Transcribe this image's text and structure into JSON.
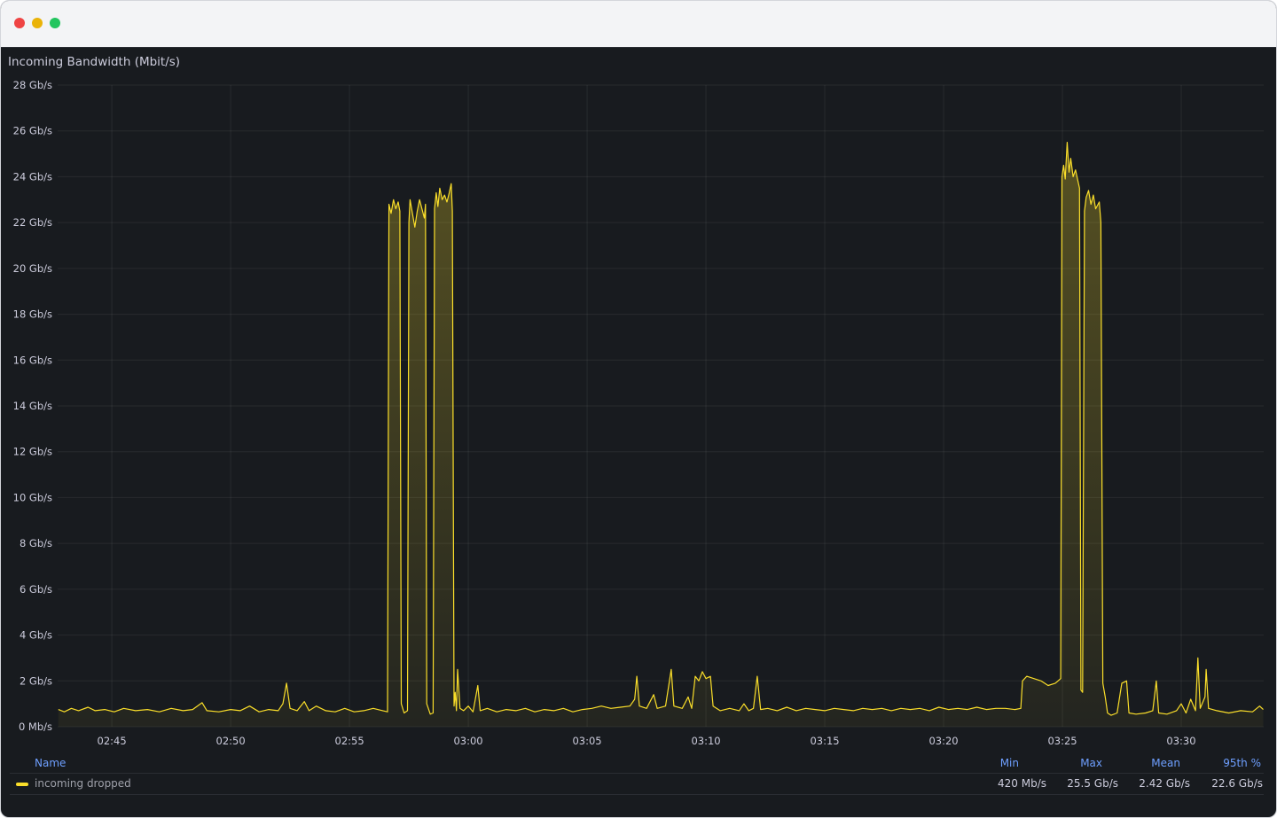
{
  "window": {
    "controls": [
      "close",
      "minimize",
      "maximize"
    ]
  },
  "panel": {
    "title": "Incoming Bandwidth (Mbit/s)"
  },
  "colors": {
    "series": "#fade2a",
    "background": "#181b1f",
    "legend_header": "#6e9fff"
  },
  "chart_data": {
    "type": "area",
    "title": "Incoming Bandwidth (Mbit/s)",
    "xlabel": "",
    "ylabel": "",
    "x_unit": "minutes after 02:40",
    "xlim": [
      2.72,
      53.47
    ],
    "ylim": [
      0,
      28
    ],
    "y_ticks": [
      0,
      2,
      4,
      6,
      8,
      10,
      12,
      14,
      16,
      18,
      20,
      22,
      24,
      26,
      28
    ],
    "y_tick_labels": [
      "0 Mb/s",
      "2 Gb/s",
      "4 Gb/s",
      "6 Gb/s",
      "8 Gb/s",
      "10 Gb/s",
      "12 Gb/s",
      "14 Gb/s",
      "16 Gb/s",
      "18 Gb/s",
      "20 Gb/s",
      "22 Gb/s",
      "24 Gb/s",
      "26 Gb/s",
      "28 Gb/s"
    ],
    "x_ticks": [
      5,
      10,
      15,
      20,
      25,
      30,
      35,
      40,
      45,
      50
    ],
    "x_tick_labels": [
      "02:45",
      "02:50",
      "02:55",
      "03:00",
      "03:05",
      "03:10",
      "03:15",
      "03:20",
      "03:25",
      "03:30"
    ],
    "grid": true,
    "legend_placement": "bottom",
    "series": [
      {
        "name": "incoming dropped",
        "points": [
          [
            2.75,
            0.75
          ],
          [
            3.0,
            0.65
          ],
          [
            3.3,
            0.8
          ],
          [
            3.6,
            0.7
          ],
          [
            4.0,
            0.85
          ],
          [
            4.3,
            0.7
          ],
          [
            4.7,
            0.75
          ],
          [
            5.1,
            0.65
          ],
          [
            5.5,
            0.8
          ],
          [
            6.0,
            0.7
          ],
          [
            6.5,
            0.75
          ],
          [
            7.0,
            0.65
          ],
          [
            7.5,
            0.8
          ],
          [
            8.0,
            0.7
          ],
          [
            8.4,
            0.75
          ],
          [
            8.8,
            1.05
          ],
          [
            9.0,
            0.7
          ],
          [
            9.5,
            0.65
          ],
          [
            10.0,
            0.75
          ],
          [
            10.4,
            0.7
          ],
          [
            10.8,
            0.9
          ],
          [
            11.2,
            0.65
          ],
          [
            11.6,
            0.75
          ],
          [
            12.0,
            0.7
          ],
          [
            12.2,
            1.0
          ],
          [
            12.35,
            1.9
          ],
          [
            12.5,
            0.8
          ],
          [
            12.8,
            0.7
          ],
          [
            13.1,
            1.1
          ],
          [
            13.3,
            0.7
          ],
          [
            13.6,
            0.9
          ],
          [
            14.0,
            0.7
          ],
          [
            14.4,
            0.65
          ],
          [
            14.8,
            0.8
          ],
          [
            15.2,
            0.65
          ],
          [
            15.6,
            0.7
          ],
          [
            16.0,
            0.8
          ],
          [
            16.4,
            0.7
          ],
          [
            16.6,
            0.65
          ],
          [
            16.66,
            22.8
          ],
          [
            16.75,
            22.4
          ],
          [
            16.85,
            23.0
          ],
          [
            16.95,
            22.6
          ],
          [
            17.05,
            22.9
          ],
          [
            17.12,
            22.5
          ],
          [
            17.18,
            1.0
          ],
          [
            17.3,
            0.6
          ],
          [
            17.44,
            0.7
          ],
          [
            17.5,
            22.0
          ],
          [
            17.55,
            23.0
          ],
          [
            17.65,
            22.4
          ],
          [
            17.75,
            21.8
          ],
          [
            17.85,
            22.5
          ],
          [
            17.95,
            23.0
          ],
          [
            18.05,
            22.6
          ],
          [
            18.15,
            22.2
          ],
          [
            18.2,
            22.8
          ],
          [
            18.25,
            1.0
          ],
          [
            18.4,
            0.55
          ],
          [
            18.52,
            0.6
          ],
          [
            18.58,
            22.6
          ],
          [
            18.65,
            23.3
          ],
          [
            18.72,
            22.7
          ],
          [
            18.8,
            23.5
          ],
          [
            18.9,
            23.0
          ],
          [
            19.0,
            23.2
          ],
          [
            19.1,
            22.9
          ],
          [
            19.2,
            23.3
          ],
          [
            19.28,
            23.7
          ],
          [
            19.33,
            22.5
          ],
          [
            19.4,
            0.9
          ],
          [
            19.45,
            1.5
          ],
          [
            19.5,
            0.7
          ],
          [
            19.55,
            2.5
          ],
          [
            19.65,
            0.8
          ],
          [
            19.8,
            0.7
          ],
          [
            20.0,
            0.9
          ],
          [
            20.2,
            0.65
          ],
          [
            20.4,
            1.8
          ],
          [
            20.5,
            0.7
          ],
          [
            20.8,
            0.8
          ],
          [
            21.2,
            0.65
          ],
          [
            21.6,
            0.75
          ],
          [
            22.0,
            0.7
          ],
          [
            22.4,
            0.8
          ],
          [
            22.8,
            0.65
          ],
          [
            23.2,
            0.75
          ],
          [
            23.6,
            0.7
          ],
          [
            24.0,
            0.8
          ],
          [
            24.4,
            0.65
          ],
          [
            24.8,
            0.75
          ],
          [
            25.2,
            0.8
          ],
          [
            25.6,
            0.9
          ],
          [
            26.0,
            0.8
          ],
          [
            26.4,
            0.85
          ],
          [
            26.8,
            0.9
          ],
          [
            27.0,
            1.2
          ],
          [
            27.09,
            2.2
          ],
          [
            27.2,
            0.9
          ],
          [
            27.5,
            0.8
          ],
          [
            27.8,
            1.4
          ],
          [
            27.95,
            0.8
          ],
          [
            28.3,
            0.9
          ],
          [
            28.54,
            2.5
          ],
          [
            28.65,
            0.9
          ],
          [
            29.0,
            0.8
          ],
          [
            29.25,
            1.3
          ],
          [
            29.4,
            0.8
          ],
          [
            29.55,
            2.2
          ],
          [
            29.7,
            2.0
          ],
          [
            29.85,
            2.4
          ],
          [
            30.0,
            2.1
          ],
          [
            30.19,
            2.2
          ],
          [
            30.3,
            0.9
          ],
          [
            30.6,
            0.7
          ],
          [
            31.0,
            0.8
          ],
          [
            31.4,
            0.7
          ],
          [
            31.6,
            1.0
          ],
          [
            31.8,
            0.7
          ],
          [
            32.0,
            0.8
          ],
          [
            32.16,
            2.2
          ],
          [
            32.3,
            0.75
          ],
          [
            32.6,
            0.8
          ],
          [
            33.0,
            0.7
          ],
          [
            33.4,
            0.85
          ],
          [
            33.8,
            0.7
          ],
          [
            34.2,
            0.8
          ],
          [
            34.6,
            0.75
          ],
          [
            35.0,
            0.7
          ],
          [
            35.4,
            0.8
          ],
          [
            35.8,
            0.75
          ],
          [
            36.2,
            0.7
          ],
          [
            36.6,
            0.8
          ],
          [
            37.0,
            0.75
          ],
          [
            37.4,
            0.8
          ],
          [
            37.8,
            0.7
          ],
          [
            38.2,
            0.8
          ],
          [
            38.6,
            0.75
          ],
          [
            39.0,
            0.8
          ],
          [
            39.4,
            0.7
          ],
          [
            39.8,
            0.85
          ],
          [
            40.2,
            0.75
          ],
          [
            40.6,
            0.8
          ],
          [
            41.0,
            0.75
          ],
          [
            41.4,
            0.85
          ],
          [
            41.8,
            0.75
          ],
          [
            42.2,
            0.8
          ],
          [
            42.6,
            0.8
          ],
          [
            43.0,
            0.75
          ],
          [
            43.25,
            0.8
          ],
          [
            43.32,
            2.0
          ],
          [
            43.5,
            2.2
          ],
          [
            43.8,
            2.1
          ],
          [
            44.1,
            2.0
          ],
          [
            44.4,
            1.8
          ],
          [
            44.7,
            1.9
          ],
          [
            44.93,
            2.1
          ],
          [
            44.98,
            24.0
          ],
          [
            45.05,
            24.5
          ],
          [
            45.12,
            23.9
          ],
          [
            45.2,
            25.5
          ],
          [
            45.28,
            24.2
          ],
          [
            45.35,
            24.8
          ],
          [
            45.45,
            24.0
          ],
          [
            45.55,
            24.3
          ],
          [
            45.72,
            23.5
          ],
          [
            45.78,
            1.6
          ],
          [
            45.85,
            1.5
          ],
          [
            45.93,
            22.5
          ],
          [
            46.0,
            23.1
          ],
          [
            46.1,
            23.4
          ],
          [
            46.2,
            22.8
          ],
          [
            46.3,
            23.2
          ],
          [
            46.4,
            22.6
          ],
          [
            46.55,
            22.9
          ],
          [
            46.62,
            22.0
          ],
          [
            46.7,
            1.9
          ],
          [
            46.8,
            1.3
          ],
          [
            46.9,
            0.6
          ],
          [
            47.05,
            0.5
          ],
          [
            47.3,
            0.6
          ],
          [
            47.5,
            1.9
          ],
          [
            47.7,
            2.0
          ],
          [
            47.8,
            0.6
          ],
          [
            48.1,
            0.55
          ],
          [
            48.5,
            0.6
          ],
          [
            48.8,
            0.7
          ],
          [
            48.95,
            2.0
          ],
          [
            49.05,
            0.6
          ],
          [
            49.4,
            0.55
          ],
          [
            49.8,
            0.7
          ],
          [
            50.0,
            1.0
          ],
          [
            50.2,
            0.6
          ],
          [
            50.4,
            1.2
          ],
          [
            50.6,
            0.7
          ],
          [
            50.7,
            3.0
          ],
          [
            50.8,
            0.8
          ],
          [
            51.0,
            1.3
          ],
          [
            51.05,
            2.5
          ],
          [
            51.15,
            0.8
          ],
          [
            51.5,
            0.7
          ],
          [
            52.0,
            0.6
          ],
          [
            52.5,
            0.7
          ],
          [
            53.0,
            0.65
          ],
          [
            53.3,
            0.9
          ],
          [
            53.45,
            0.75
          ]
        ]
      }
    ],
    "legend": {
      "columns": [
        "Name",
        "Min",
        "Max",
        "Mean",
        "95th %"
      ],
      "rows": [
        {
          "name": "incoming dropped",
          "min": "420 Mb/s",
          "max": "25.5 Gb/s",
          "mean": "2.42 Gb/s",
          "p95": "22.6 Gb/s"
        }
      ]
    }
  }
}
